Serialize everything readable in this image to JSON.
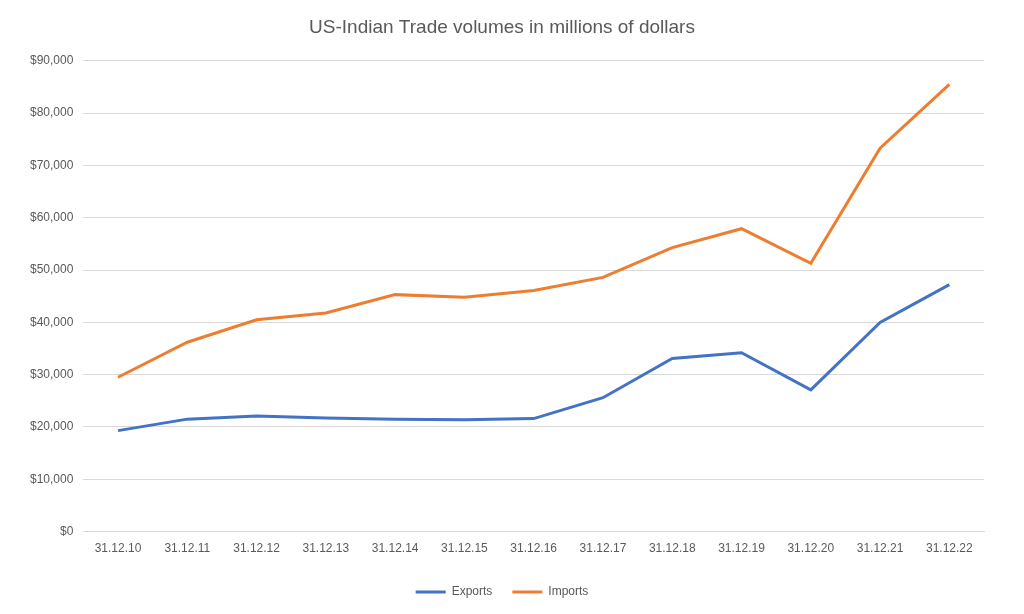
{
  "chart_data": {
    "type": "line",
    "title": "US-Indian Trade volumes in millions of dollars",
    "categories": [
      "31.12.10",
      "31.12.11",
      "31.12.12",
      "31.12.13",
      "31.12.14",
      "31.12.15",
      "31.12.16",
      "31.12.17",
      "31.12.18",
      "31.12.19",
      "31.12.20",
      "31.12.21",
      "31.12.22"
    ],
    "series": [
      {
        "name": "Exports",
        "color": "#4472c4",
        "values": [
          19300,
          21500,
          22100,
          21700,
          21500,
          21400,
          21600,
          25600,
          33100,
          34200,
          27100,
          40000,
          47200
        ]
      },
      {
        "name": "Imports",
        "color": "#ed7d31",
        "values": [
          29500,
          36200,
          40500,
          41800,
          45300,
          44800,
          46100,
          48600,
          54300,
          57900,
          51300,
          73300,
          85500
        ]
      }
    ],
    "ylim": [
      0,
      90000
    ],
    "yticks": [
      {
        "value": 0,
        "label": "$0"
      },
      {
        "value": 10000,
        "label": "$10,000"
      },
      {
        "value": 20000,
        "label": "$20,000"
      },
      {
        "value": 30000,
        "label": "$30,000"
      },
      {
        "value": 40000,
        "label": "$40,000"
      },
      {
        "value": 50000,
        "label": "$50,000"
      },
      {
        "value": 60000,
        "label": "$60,000"
      },
      {
        "value": 70000,
        "label": "$70,000"
      },
      {
        "value": 80000,
        "label": "$80,000"
      },
      {
        "value": 90000,
        "label": "$90,000"
      }
    ],
    "grid": true,
    "legend": "bottom",
    "marker": "none",
    "line_style": "solid"
  }
}
